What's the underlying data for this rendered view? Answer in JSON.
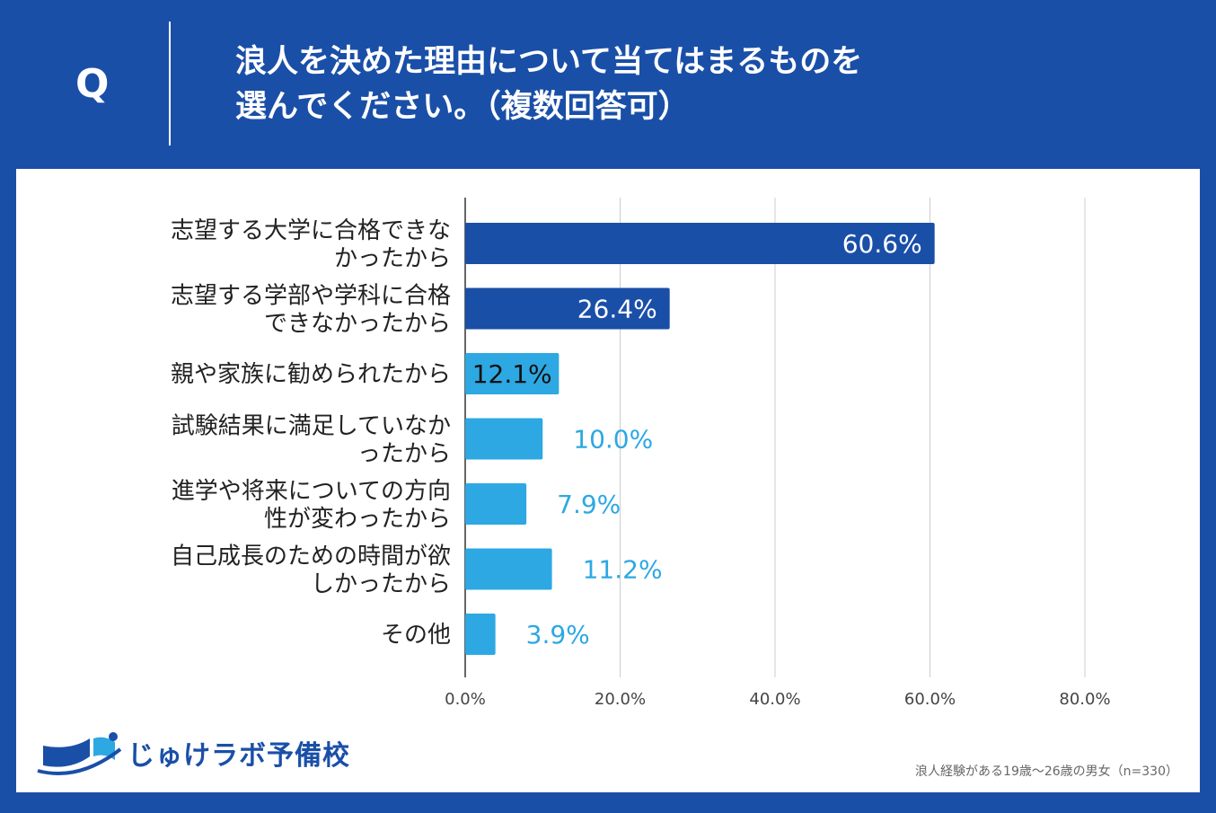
{
  "header": {
    "q_label": "Q",
    "question_line1": "浪人を決めた理由について当てはまるものを",
    "question_line2": "選んでください。（複数回答可）"
  },
  "colors": {
    "background": "#1a4fa8",
    "dark_bar": "#1a4fa8",
    "light_bar": "#2da8e2"
  },
  "chart_data": {
    "type": "bar",
    "orientation": "horizontal",
    "categories": [
      [
        "志望する大学に合格できな",
        "かったから"
      ],
      [
        "志望する学部や学科に合格",
        "できなかったから"
      ],
      [
        "親や家族に勧められたから"
      ],
      [
        "試験結果に満足していなか",
        "ったから"
      ],
      [
        "進学や将来についての方向",
        "性が変わったから"
      ],
      [
        "自己成長のための時間が欲",
        "しかったから"
      ],
      [
        "その他"
      ]
    ],
    "values": [
      60.6,
      26.4,
      12.1,
      10.0,
      7.9,
      11.2,
      3.9
    ],
    "value_labels": [
      "60.6%",
      "26.4%",
      "12.1%",
      "10.0%",
      "7.9%",
      "11.2%",
      "3.9%"
    ],
    "bar_colors": [
      "#1a4fa8",
      "#1a4fa8",
      "#2da8e2",
      "#2da8e2",
      "#2da8e2",
      "#2da8e2",
      "#2da8e2"
    ],
    "xlim": [
      0,
      80
    ],
    "xticks": [
      0,
      20,
      40,
      60,
      80
    ],
    "xtick_labels": [
      "0.0%",
      "20.0%",
      "40.0%",
      "60.0%",
      "80.0%"
    ],
    "grid": true
  },
  "footnote": "浪人経験がある19歳～26歳の男女（n=330）",
  "logo": {
    "text": "じゅけラボ予備校"
  }
}
